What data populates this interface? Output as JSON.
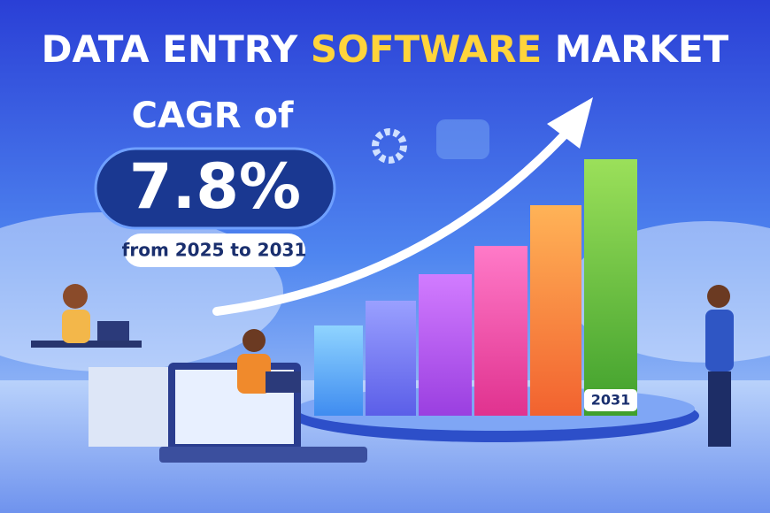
{
  "title": {
    "parts": [
      "DATA ENTRY",
      "SOFTWARE",
      "MARKET"
    ]
  },
  "cagr": {
    "label": "CAGR of",
    "value": "7.8%",
    "period": "from 2025 to 2031"
  },
  "chart_label": "2031"
}
